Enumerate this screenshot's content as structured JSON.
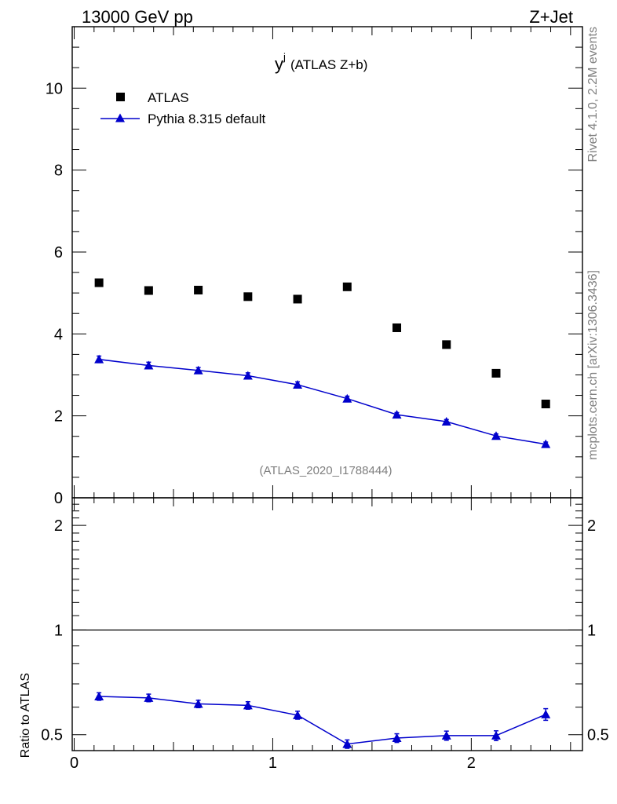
{
  "header": {
    "energy_label": "13000 GeV pp",
    "process_label": "Z+Jet"
  },
  "side_labels": {
    "rivet": "Rivet 4.1.0,  2.2M events",
    "mcplots": "mcplots.cern.ch [arXiv:1306.3436]"
  },
  "colors": {
    "data": "#000000",
    "mc": "#0000cc",
    "analysis_id": "#7f7f7f"
  },
  "chart_data": [
    {
      "type": "scatter",
      "title": "y^j (ATLAS Z+b)",
      "title_main": "y",
      "title_sup": "j",
      "title_rest": "(ATLAS Z+b)",
      "analysis_id": "(ATLAS_2020_I1788444)",
      "xlabel": "",
      "ylabel": "",
      "xlim": [
        -0.01,
        2.56
      ],
      "ylim": [
        0,
        11.5
      ],
      "yticks": [
        0,
        2,
        4,
        6,
        8,
        10
      ],
      "ytick_labels": [
        "0",
        "2",
        "4",
        "6",
        "8",
        "10"
      ],
      "x": [
        0.125,
        0.375,
        0.625,
        0.875,
        1.125,
        1.375,
        1.625,
        1.875,
        2.125,
        2.375
      ],
      "legend_position": "top-left",
      "series": [
        {
          "name": "ATLAS",
          "style": "markers",
          "marker": "square",
          "values": [
            5.25,
            5.06,
            5.07,
            4.91,
            4.85,
            5.15,
            4.15,
            3.74,
            3.04,
            2.29
          ],
          "errors": [
            0.05,
            0.05,
            0.05,
            0.05,
            0.05,
            0.05,
            0.05,
            0.05,
            0.05,
            0.05
          ]
        },
        {
          "name": "Pythia 8.315 default",
          "style": "line+markers",
          "marker": "triangle",
          "values": [
            3.38,
            3.23,
            3.11,
            2.98,
            2.76,
            2.42,
            2.03,
            1.86,
            1.51,
            1.31
          ],
          "errors": [
            0.08,
            0.08,
            0.07,
            0.07,
            0.07,
            0.06,
            0.05,
            0.05,
            0.05,
            0.05
          ]
        }
      ]
    },
    {
      "type": "line",
      "title": "",
      "xlabel": "",
      "ylabel": "Ratio to ATLAS",
      "xlim": [
        -0.01,
        2.56
      ],
      "ylim": [
        0.45,
        2.4
      ],
      "yscale": "log",
      "yticks": [
        0.5,
        1,
        2
      ],
      "ytick_labels": [
        "0.5",
        "1",
        "2"
      ],
      "xticks": [
        0,
        1,
        2
      ],
      "xtick_labels": [
        "0",
        "1",
        "2"
      ],
      "reference_line": 1,
      "x": [
        0.125,
        0.375,
        0.625,
        0.875,
        1.125,
        1.375,
        1.625,
        1.875,
        2.125,
        2.375
      ],
      "series": [
        {
          "name": "Pythia 8.315 default / ATLAS",
          "values": [
            0.644,
            0.638,
            0.613,
            0.607,
            0.569,
            0.47,
            0.489,
            0.497,
            0.497,
            0.572
          ],
          "errors": [
            0.016,
            0.016,
            0.015,
            0.015,
            0.015,
            0.013,
            0.014,
            0.015,
            0.016,
            0.022
          ]
        }
      ]
    }
  ]
}
